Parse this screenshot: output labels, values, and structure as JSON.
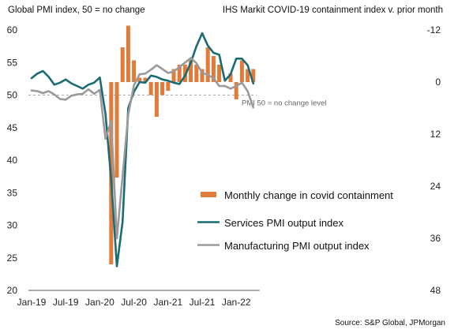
{
  "chart_data": {
    "type": "bar+line",
    "left_axis_label": "Global PMI index, 50 =  no change",
    "right_axis_label": "IHS Markit COVID-19 containment index v. prior month",
    "source": "Source: S&P Global, JPMorgan",
    "reference_line_label": "PMI 50 = no change level",
    "ylim_left": [
      20,
      60
    ],
    "ylim_right": [
      48,
      -12
    ],
    "left_ticks": [
      "60",
      "55",
      "50",
      "45",
      "40",
      "35",
      "30",
      "25",
      "20"
    ],
    "right_ticks": [
      "-12",
      "0",
      "12",
      "24",
      "36",
      "48"
    ],
    "x_tick_labels": [
      "Jan-19",
      "Jul-19",
      "Jan-20",
      "Jul-20",
      "Jan-21",
      "Jul-21",
      "Jan-22"
    ],
    "x": [
      "Jan-19",
      "Feb-19",
      "Mar-19",
      "Apr-19",
      "May-19",
      "Jun-19",
      "Jul-19",
      "Aug-19",
      "Sep-19",
      "Oct-19",
      "Nov-19",
      "Dec-19",
      "Jan-20",
      "Feb-20",
      "Mar-20",
      "Apr-20",
      "May-20",
      "Jun-20",
      "Jul-20",
      "Aug-20",
      "Sep-20",
      "Oct-20",
      "Nov-20",
      "Dec-20",
      "Jan-21",
      "Feb-21",
      "Mar-21",
      "Apr-21",
      "May-21",
      "Jun-21",
      "Jul-21",
      "Aug-21",
      "Sep-21",
      "Oct-21",
      "Nov-21",
      "Dec-21",
      "Jan-22",
      "Feb-22",
      "Mar-22",
      "Apr-22"
    ],
    "series": [
      {
        "name": "Monthly change in covid containment",
        "type": "bar",
        "axis": "right",
        "color": "#E07B39",
        "values": [
          null,
          null,
          null,
          null,
          null,
          null,
          null,
          null,
          null,
          null,
          null,
          null,
          null,
          null,
          42,
          22,
          -8,
          -13,
          -5,
          -1,
          -1,
          3,
          8,
          3,
          2,
          -3,
          -4,
          -4,
          -5,
          -4,
          -3,
          -8,
          -6,
          -4,
          null,
          -2,
          4,
          -5,
          -3,
          -3
        ]
      },
      {
        "name": "Services PMI output index",
        "type": "line",
        "axis": "left",
        "color": "#1A6B74",
        "values": [
          52.6,
          53.3,
          53.7,
          52.8,
          51.6,
          51.9,
          52.4,
          51.8,
          51.4,
          51.0,
          51.6,
          51.9,
          52.7,
          47.1,
          37.0,
          23.7,
          30.5,
          48.0,
          50.5,
          52.0,
          51.9,
          53.0,
          52.8,
          52.4,
          52.2,
          51.9,
          51.7,
          53.0,
          55.0,
          57.5,
          59.5,
          57.6,
          56.5,
          56.2,
          52.2,
          53.2,
          55.6,
          55.6,
          54.6,
          51.8
        ]
      },
      {
        "name": "Manufacturing PMI output index",
        "type": "line",
        "axis": "left",
        "color": "#9A9A9A",
        "values": [
          50.7,
          50.6,
          50.3,
          50.6,
          50.1,
          49.4,
          49.3,
          49.9,
          50.1,
          50.2,
          50.9,
          50.2,
          50.8,
          43.3,
          46.0,
          28.0,
          37.5,
          47.0,
          51.5,
          53.2,
          53.3,
          53.9,
          54.6,
          54.0,
          53.4,
          53.6,
          54.3,
          55.0,
          55.7,
          54.9,
          53.4,
          53.1,
          52.6,
          51.4,
          51.4,
          51.0,
          51.4,
          51.9,
          50.6,
          48.1
        ]
      }
    ]
  }
}
